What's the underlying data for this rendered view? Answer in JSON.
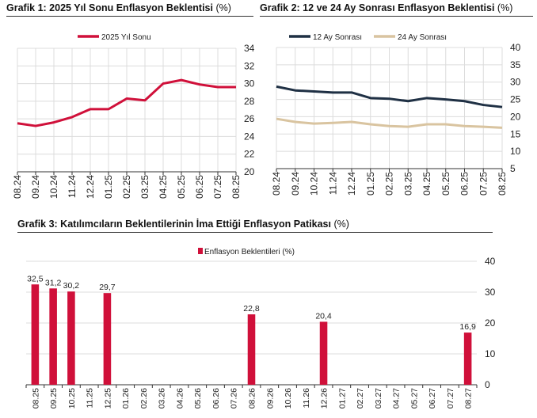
{
  "chart_data": [
    {
      "type": "line",
      "title": "Grafik 1: 2025 Yıl Sonu Enflasyon Beklentisi",
      "unit": "(%)",
      "categories": [
        "08.24",
        "09.24",
        "10.24",
        "11.24",
        "12.24",
        "01.25",
        "02.25",
        "03.25",
        "04.25",
        "05.25",
        "06.25",
        "07.25",
        "08.25"
      ],
      "series": [
        {
          "name": "2025 Yıl Sonu",
          "color": "#d0103a",
          "values": [
            25.5,
            25.2,
            25.6,
            26.2,
            27.1,
            27.1,
            28.3,
            28.1,
            30.0,
            30.4,
            29.9,
            29.6,
            29.6
          ]
        }
      ],
      "ylim": [
        20,
        34
      ],
      "yticks": [
        20,
        22,
        24,
        26,
        28,
        30,
        32,
        34
      ],
      "grid": true,
      "legend": "top"
    },
    {
      "type": "line",
      "title": "Grafik 2: 12 ve 24 Ay Sonrası Enflasyon Beklentisi",
      "unit": "(%)",
      "categories": [
        "08.24",
        "09.24",
        "10.24",
        "11.24",
        "12.24",
        "01.25",
        "02.25",
        "03.25",
        "04.25",
        "05.25",
        "06.25",
        "07.25",
        "08.25"
      ],
      "series": [
        {
          "name": "12 Ay Sonrası",
          "color": "#1f3044",
          "values": [
            28.7,
            27.6,
            27.3,
            27.0,
            27.0,
            25.4,
            25.2,
            24.5,
            25.4,
            25.0,
            24.5,
            23.4,
            22.8
          ]
        },
        {
          "name": "24 Ay Sonrası",
          "color": "#d9c4a0",
          "values": [
            19.4,
            18.5,
            18.0,
            18.2,
            18.5,
            17.8,
            17.3,
            17.1,
            17.8,
            17.8,
            17.3,
            17.1,
            16.8
          ]
        }
      ],
      "ylim": [
        5,
        40
      ],
      "yticks": [
        5,
        10,
        15,
        20,
        25,
        30,
        35,
        40
      ],
      "grid": true,
      "legend": "top"
    },
    {
      "type": "bar",
      "title": "Grafik 3: Katılımcıların Beklentilerinin İma Ettiği Enflasyon Patikası",
      "unit": "(%)",
      "categories": [
        "08.25",
        "09.25",
        "10.25",
        "11.25",
        "12.25",
        "01.26",
        "02.26",
        "03.26",
        "04.26",
        "05.26",
        "06.26",
        "07.26",
        "08.26",
        "09.26",
        "10.26",
        "11.26",
        "12.26",
        "01.27",
        "02.27",
        "03.27",
        "04.27",
        "05.27",
        "06.27",
        "07.27",
        "08.27"
      ],
      "series": [
        {
          "name": "Enflasyon Beklentileri (%)",
          "color": "#d0103a",
          "values": [
            32.5,
            31.2,
            30.2,
            null,
            29.7,
            null,
            null,
            null,
            null,
            null,
            null,
            null,
            22.8,
            null,
            null,
            null,
            20.4,
            null,
            null,
            null,
            null,
            null,
            null,
            null,
            16.9
          ]
        }
      ],
      "data_labels": [
        "32,5",
        "31,2",
        "30,2",
        null,
        "29,7",
        null,
        null,
        null,
        null,
        null,
        null,
        null,
        "22,8",
        null,
        null,
        null,
        "20,4",
        null,
        null,
        null,
        null,
        null,
        null,
        null,
        "16,9"
      ],
      "ylim": [
        0,
        40
      ],
      "yticks": [
        0,
        10,
        20,
        30,
        40
      ],
      "grid": true,
      "legend": "top"
    }
  ]
}
